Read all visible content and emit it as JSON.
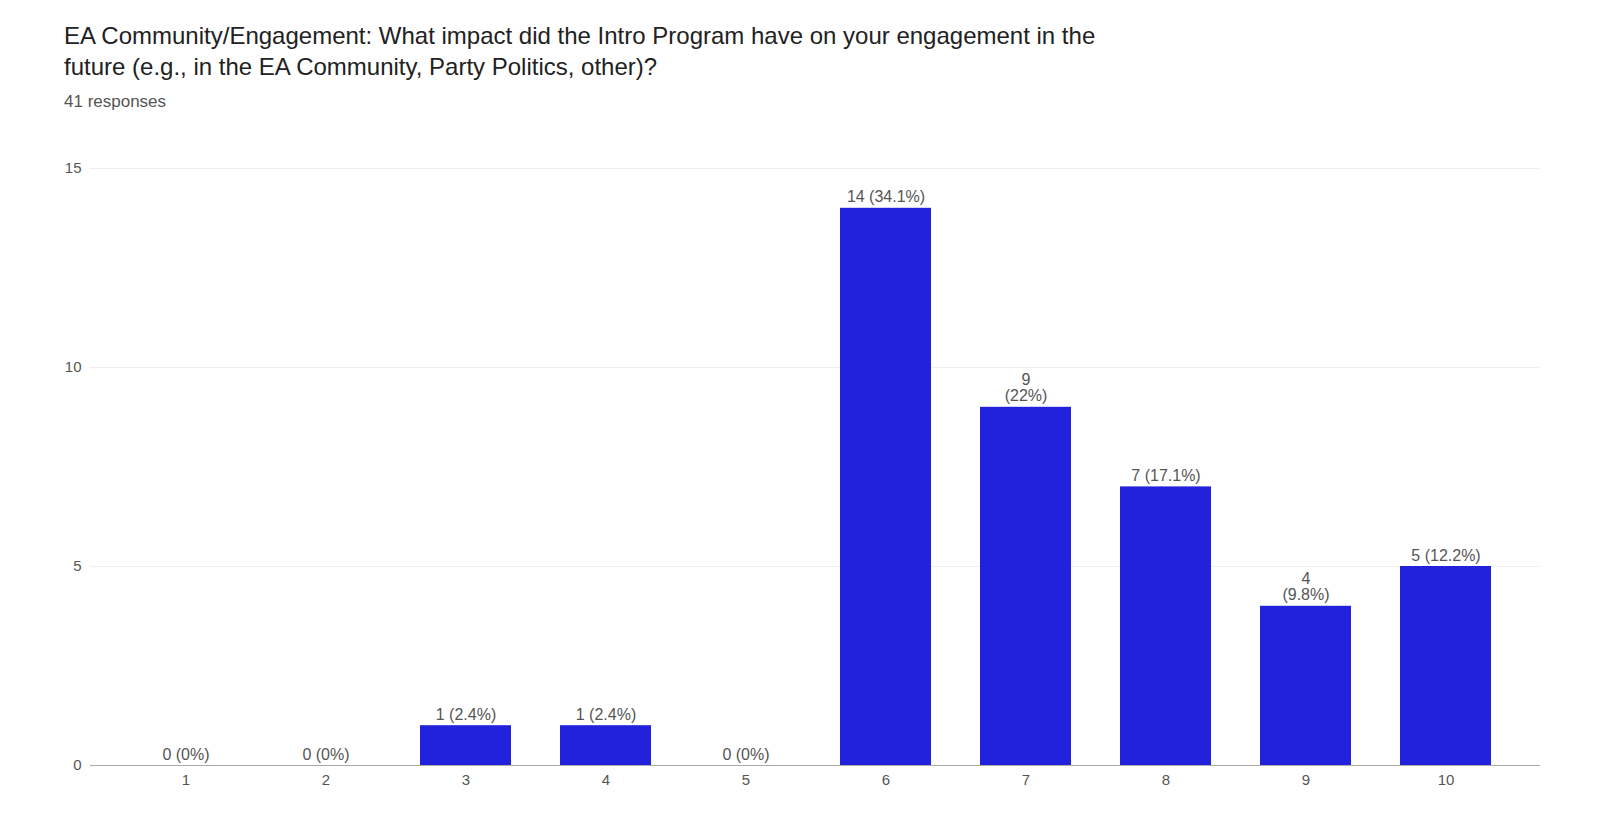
{
  "chart_data": {
    "type": "bar",
    "title": "EA Community/Engagement: What impact did the Intro Program have on your engagement in the\nfuture (e.g., in the EA Community, Party Politics, other)?",
    "subtitle": "41 responses",
    "categories": [
      1,
      2,
      3,
      4,
      5,
      6,
      7,
      8,
      9,
      10
    ],
    "values": [
      0,
      0,
      1,
      1,
      0,
      14,
      9,
      7,
      4,
      5
    ],
    "value_labels": [
      "0 (0%)",
      "0 (0%)",
      "1 (2.4%)",
      "1 (2.4%)",
      "0 (0%)",
      "14 (34.1%)",
      "9\n(22%)",
      "7 (17.1%)",
      "4\n(9.8%)",
      "5 (12.2%)"
    ],
    "color": "#2222dd",
    "ylim": [
      0,
      15
    ],
    "yticks": [
      0,
      5,
      10,
      15
    ],
    "grid": true
  }
}
